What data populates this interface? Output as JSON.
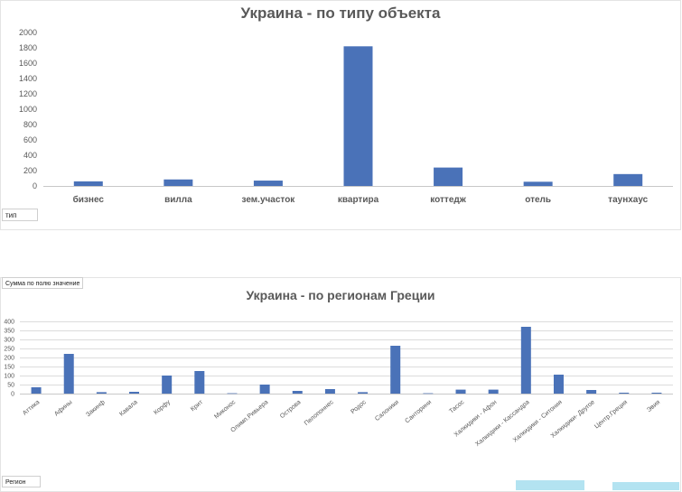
{
  "chart_data": [
    {
      "type": "bar",
      "title": "Украина - по типу объекта",
      "categories": [
        "бизнес",
        "вилла",
        "зем.участок",
        "квартира",
        "коттедж",
        "отель",
        "таунхаус"
      ],
      "values": [
        60,
        85,
        70,
        1820,
        240,
        55,
        155
      ],
      "ylim": [
        0,
        2000
      ],
      "yticks": [
        0,
        200,
        400,
        600,
        800,
        1000,
        1200,
        1400,
        1600,
        1800,
        2000
      ],
      "grid": false,
      "bar_color": "#4a72b8",
      "field_button": "тип"
    },
    {
      "type": "bar",
      "title": "Украина - по регионам Греции",
      "categories": [
        "Аттика",
        "Афины",
        "Закинф",
        "Кавала",
        "Корфу",
        "Крит",
        "Миконос",
        "Олимп.Ривьера",
        "Острова",
        "Пелопоннес",
        "Родос",
        "Салоники",
        "Санторини",
        "Тасос",
        "Халкидики - Афон",
        "Халкидики - Кассандра",
        "Халкидики - Ситония",
        "Халкидики- Другое",
        "Центр.Греция",
        "Эвия"
      ],
      "values": [
        35,
        220,
        8,
        10,
        100,
        125,
        2,
        50,
        15,
        25,
        8,
        265,
        2,
        22,
        22,
        370,
        105,
        20,
        5,
        5
      ],
      "ylim": [
        0,
        400
      ],
      "yticks": [
        0,
        50,
        100,
        150,
        200,
        250,
        300,
        350,
        400
      ],
      "grid": true,
      "bar_color": "#4a72b8",
      "value_field_button": "Сумма по полю значение",
      "field_button": "Регион"
    }
  ],
  "slicer_color": "#b3e3f1"
}
